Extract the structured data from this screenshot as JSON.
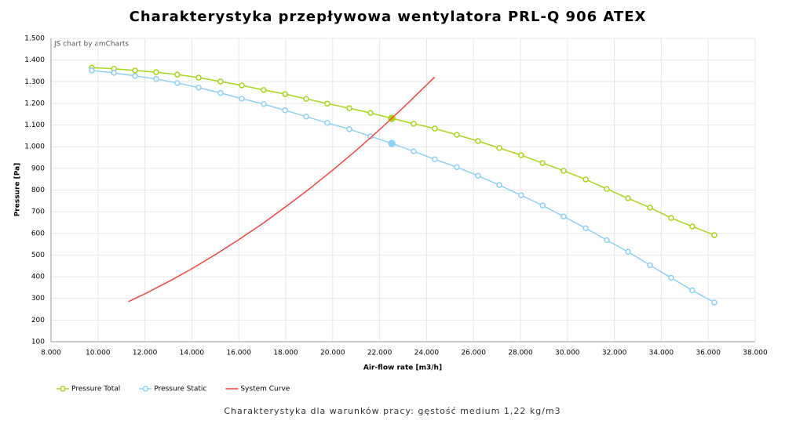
{
  "chart_data": {
    "type": "line",
    "title": "Charakterystyka przepływowa wentylatora PRL-Q 906 ATEX",
    "subtitle": "Charakterystyka dla warunków pracy: gęstość medium 1,22 kg/m3",
    "credit": "JS chart by amCharts",
    "x_label": "Air-flow rate [m3/h]",
    "y_label": "Pressure [Pa]",
    "xlim": [
      8000,
      38000
    ],
    "ylim": [
      100,
      1500
    ],
    "grid": true,
    "legend": "bottom-left",
    "xticks": [
      {
        "value": 8000,
        "label": "8.000"
      },
      {
        "value": 10000,
        "label": "10.000"
      },
      {
        "value": 12000,
        "label": "12.000"
      },
      {
        "value": 14000,
        "label": "14.000"
      },
      {
        "value": 16000,
        "label": "16.000"
      },
      {
        "value": 18000,
        "label": "18.000"
      },
      {
        "value": 20000,
        "label": "20.000"
      },
      {
        "value": 22000,
        "label": "22.000"
      },
      {
        "value": 24000,
        "label": "24.000"
      },
      {
        "value": 26000,
        "label": "26.000"
      },
      {
        "value": 28000,
        "label": "28.000"
      },
      {
        "value": 30000,
        "label": "30.000"
      },
      {
        "value": 32000,
        "label": "32.000"
      },
      {
        "value": 34000,
        "label": "34.000"
      },
      {
        "value": 36000,
        "label": "36.000"
      },
      {
        "value": 38000,
        "label": "38.000"
      }
    ],
    "yticks": [
      100,
      200,
      300,
      400,
      500,
      600,
      700,
      800,
      900,
      {
        "value": 1000,
        "label": "1.000"
      },
      {
        "value": 1100,
        "label": "1.100"
      },
      {
        "value": 1200,
        "label": "1.200"
      },
      {
        "value": 1300,
        "label": "1.300"
      },
      {
        "value": 1400,
        "label": "1.400"
      },
      {
        "value": 1500,
        "label": "1.500"
      }
    ],
    "series": [
      {
        "name": "Pressure Total",
        "color": "#a8d41c",
        "markers": true,
        "highlight_index": 14,
        "x": [
          9740,
          10680,
          11580,
          12480,
          13380,
          14290,
          15220,
          16130,
          17060,
          17970,
          18870,
          19770,
          20710,
          21610,
          22520,
          23450,
          24350,
          25290,
          26190,
          27100,
          28030,
          28940,
          29840,
          30780,
          31680,
          32580,
          33520,
          34420,
          35320,
          36260
        ],
        "values": [
          1365,
          1360,
          1352,
          1344,
          1333,
          1319,
          1301,
          1283,
          1262,
          1243,
          1221,
          1199,
          1178,
          1156,
          1131,
          1106,
          1084,
          1055,
          1026,
          994,
          961,
          925,
          889,
          849,
          805,
          762,
          719,
          671,
          632,
          592
        ]
      },
      {
        "name": "Pressure Static",
        "color": "#8dd0f2",
        "markers": true,
        "highlight_index": 14,
        "x": [
          9740,
          10680,
          11580,
          12480,
          13380,
          14290,
          15220,
          16130,
          17060,
          17970,
          18870,
          19770,
          20710,
          21610,
          22520,
          23450,
          24350,
          25290,
          26190,
          27100,
          28030,
          28940,
          29840,
          30780,
          31680,
          32580,
          33520,
          34420,
          35320,
          36260
        ],
        "values": [
          1352,
          1341,
          1327,
          1313,
          1294,
          1273,
          1248,
          1222,
          1197,
          1168,
          1139,
          1110,
          1081,
          1048,
          1015,
          979,
          942,
          906,
          866,
          823,
          776,
          729,
          678,
          624,
          569,
          515,
          453,
          395,
          337,
          281
        ]
      },
      {
        "name": "System Curve",
        "color": "#f2453d",
        "markers": false,
        "x": [
          11300,
          12000,
          13000,
          14000,
          15000,
          16000,
          17000,
          18000,
          19000,
          20000,
          21000,
          22000,
          23000,
          24000,
          24350
        ],
        "values": [
          285,
          321,
          377,
          437,
          502,
          571,
          644,
          723,
          805,
          892,
          983,
          1079,
          1180,
          1285,
          1322
        ]
      }
    ]
  }
}
